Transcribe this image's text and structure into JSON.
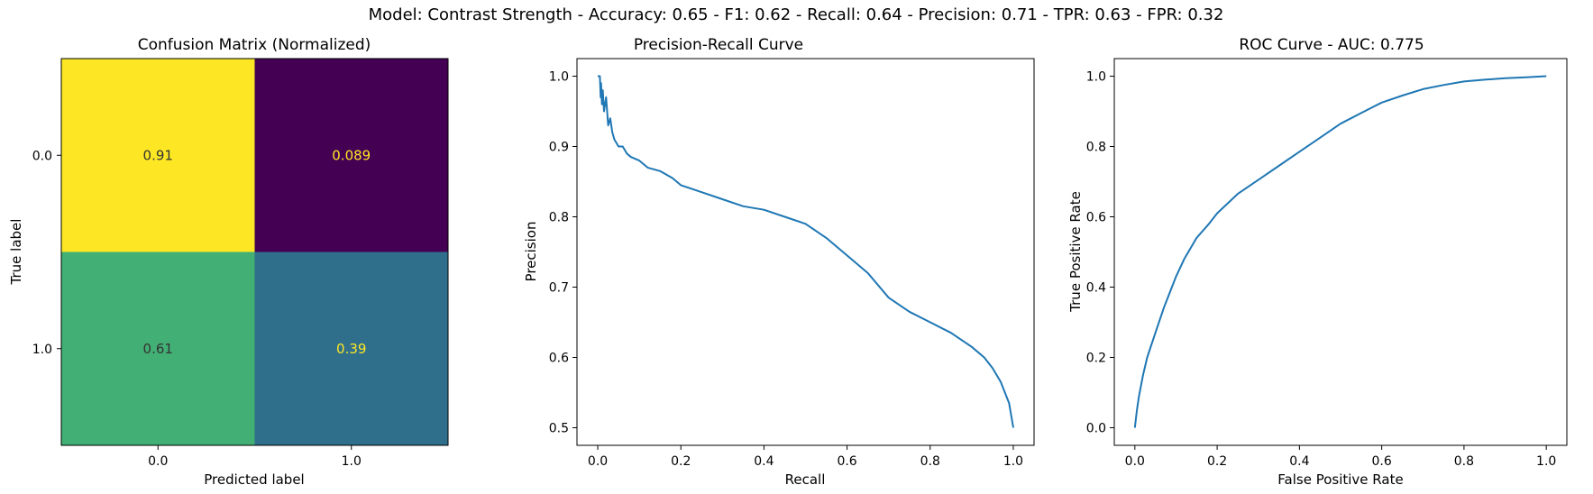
{
  "figure": {
    "suptitle": "Model: Contrast Strength - Accuracy: 0.65 - F1: 0.62 - Recall: 0.64 - Precision: 0.71 - TPR: 0.63 - FPR: 0.32"
  },
  "colors": {
    "line": "#1f77b4",
    "cm_high": "#fde725",
    "cm_low": "#440154",
    "cm_mid_green": "#2ab07f",
    "cm_mid_blue": "#2c728e",
    "text_dark": "#333333",
    "text_light": "#fde725"
  },
  "chart_data": [
    {
      "type": "heatmap",
      "title": "Confusion Matrix (Normalized)",
      "xlabel": "Predicted label",
      "ylabel": "True label",
      "x_categories": [
        "0.0",
        "1.0"
      ],
      "y_categories": [
        "0.0",
        "1.0"
      ],
      "values": [
        [
          0.91,
          0.089
        ],
        [
          0.61,
          0.39
        ]
      ],
      "cell_labels": [
        [
          "0.91",
          "0.089"
        ],
        [
          "0.61",
          "0.39"
        ]
      ],
      "colormap": "viridis"
    },
    {
      "type": "line",
      "title": "Precision-Recall Curve",
      "xlabel": "Recall",
      "ylabel": "Precision",
      "xlim": [
        0.0,
        1.0
      ],
      "ylim": [
        0.5,
        1.0
      ],
      "xticks": [
        "0.0",
        "0.2",
        "0.4",
        "0.6",
        "0.8",
        "1.0"
      ],
      "yticks": [
        "0.5",
        "0.6",
        "0.7",
        "0.8",
        "0.9",
        "1.0"
      ],
      "grid": false,
      "series": [
        {
          "x": [
            0.0,
            0.005,
            0.007,
            0.008,
            0.01,
            0.012,
            0.015,
            0.02,
            0.025,
            0.03,
            0.035,
            0.04,
            0.05,
            0.06,
            0.07,
            0.08,
            0.1,
            0.12,
            0.15,
            0.18,
            0.2,
            0.25,
            0.3,
            0.35,
            0.4,
            0.45,
            0.5,
            0.55,
            0.6,
            0.65,
            0.7,
            0.75,
            0.8,
            0.85,
            0.9,
            0.93,
            0.95,
            0.97,
            0.98,
            0.99,
            1.0
          ],
          "y": [
            1.0,
            1.0,
            0.97,
            0.99,
            0.96,
            0.98,
            0.95,
            0.97,
            0.93,
            0.94,
            0.92,
            0.91,
            0.9,
            0.9,
            0.89,
            0.885,
            0.88,
            0.87,
            0.865,
            0.855,
            0.845,
            0.835,
            0.825,
            0.815,
            0.81,
            0.8,
            0.79,
            0.77,
            0.745,
            0.72,
            0.685,
            0.665,
            0.65,
            0.635,
            0.615,
            0.6,
            0.585,
            0.565,
            0.55,
            0.535,
            0.5
          ]
        }
      ]
    },
    {
      "type": "line",
      "title": "ROC Curve - AUC: 0.775",
      "xlabel": "False Positive Rate",
      "ylabel": "True Positive Rate",
      "xlim": [
        0.0,
        1.0
      ],
      "ylim": [
        0.0,
        1.0
      ],
      "xticks": [
        "0.0",
        "0.2",
        "0.4",
        "0.6",
        "0.8",
        "1.0"
      ],
      "yticks": [
        "0.0",
        "0.2",
        "0.4",
        "0.6",
        "0.8",
        "1.0"
      ],
      "grid": false,
      "series": [
        {
          "x": [
            0.0,
            0.005,
            0.01,
            0.02,
            0.03,
            0.05,
            0.07,
            0.1,
            0.12,
            0.15,
            0.18,
            0.2,
            0.25,
            0.3,
            0.35,
            0.4,
            0.45,
            0.5,
            0.55,
            0.6,
            0.65,
            0.7,
            0.75,
            0.8,
            0.85,
            0.9,
            0.95,
            1.0
          ],
          "y": [
            0.0,
            0.05,
            0.09,
            0.15,
            0.2,
            0.27,
            0.34,
            0.43,
            0.48,
            0.54,
            0.58,
            0.61,
            0.665,
            0.705,
            0.745,
            0.785,
            0.825,
            0.865,
            0.895,
            0.925,
            0.945,
            0.963,
            0.975,
            0.985,
            0.99,
            0.994,
            0.997,
            1.0
          ]
        }
      ]
    }
  ]
}
